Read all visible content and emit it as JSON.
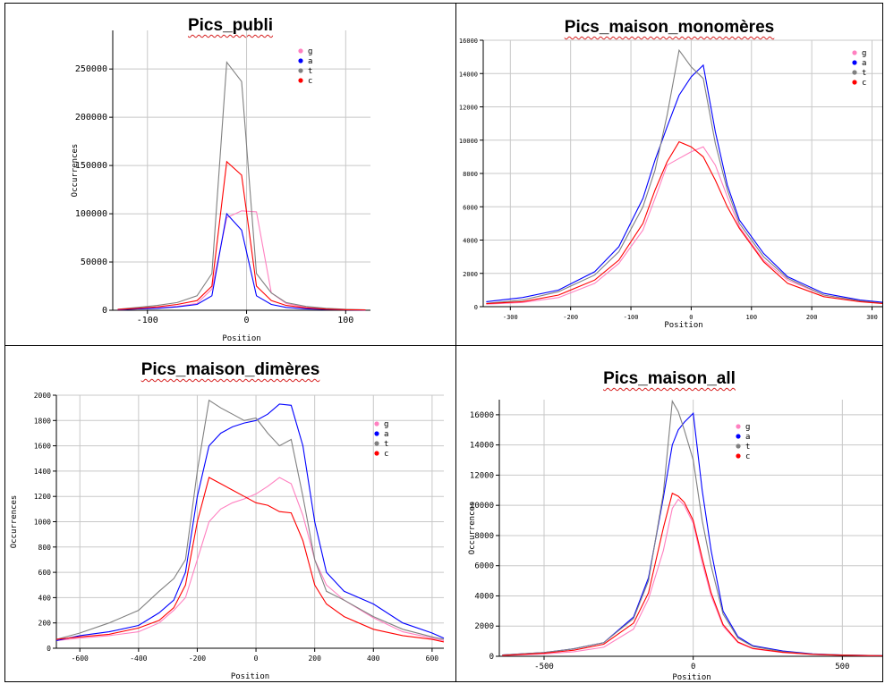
{
  "charts": [
    {
      "title": "Pics_publi",
      "chart_data": {
        "type": "line",
        "xlabel": "Position",
        "ylabel": "Occurrences",
        "xlim": [
          -135,
          125
        ],
        "ylim": [
          0,
          290000
        ],
        "xticks": [
          -100,
          0,
          100
        ],
        "yticks": [
          0,
          50000,
          100000,
          150000,
          200000,
          250000
        ],
        "grid": true,
        "legend_position": "top-right",
        "series": [
          {
            "name": "g",
            "color": "#ff80c0",
            "x": [
              -130,
              -110,
              -90,
              -70,
              -50,
              -35,
              -20,
              -5,
              10,
              25,
              40,
              60,
              80,
              100,
              120
            ],
            "y": [
              500,
              1500,
              2500,
              4000,
              7000,
              22000,
              96000,
              103000,
              102000,
              18000,
              7000,
              3000,
              1500,
              800,
              400
            ]
          },
          {
            "name": "a",
            "color": "#0000ff",
            "x": [
              -130,
              -110,
              -90,
              -70,
              -50,
              -35,
              -20,
              -5,
              10,
              25,
              40,
              60,
              80,
              100,
              120
            ],
            "y": [
              500,
              1500,
              2000,
              3500,
              6000,
              15000,
              100000,
              83000,
              15000,
              6000,
              3000,
              1500,
              800,
              400,
              200
            ]
          },
          {
            "name": "t",
            "color": "#808080",
            "x": [
              -130,
              -110,
              -90,
              -70,
              -50,
              -35,
              -20,
              -5,
              10,
              25,
              40,
              60,
              80,
              100,
              120
            ],
            "y": [
              1000,
              3000,
              5000,
              8000,
              15000,
              38000,
              257000,
              237000,
              38000,
              18000,
              8000,
              4000,
              2000,
              1000,
              500
            ]
          },
          {
            "name": "c",
            "color": "#ff0000",
            "x": [
              -130,
              -110,
              -90,
              -70,
              -50,
              -35,
              -20,
              -5,
              10,
              25,
              40,
              60,
              80,
              100,
              120
            ],
            "y": [
              800,
              2000,
              3500,
              6000,
              10000,
              25000,
              154000,
              140000,
              25000,
              10000,
              5000,
              2500,
              1200,
              600,
              300
            ]
          }
        ]
      }
    },
    {
      "title": "Pics_maison_monomères",
      "chart_data": {
        "type": "line",
        "xlabel": "Position",
        "ylabel": "",
        "xlim": [
          -345,
          320
        ],
        "ylim": [
          0,
          16000
        ],
        "xticks": [
          -300,
          -200,
          -100,
          0,
          100,
          200,
          300
        ],
        "yticks": [
          0,
          2000,
          4000,
          6000,
          8000,
          10000,
          12000,
          14000,
          16000
        ],
        "grid": true,
        "legend_position": "top-right",
        "series": [
          {
            "name": "g",
            "color": "#ff80c0",
            "x": [
              -340,
              -280,
              -220,
              -160,
              -120,
              -80,
              -60,
              -40,
              -20,
              0,
              20,
              40,
              60,
              80,
              120,
              160,
              220,
              280,
              320
            ],
            "y": [
              150,
              250,
              550,
              1400,
              2600,
              4600,
              6500,
              8500,
              8900,
              9300,
              9600,
              8500,
              6600,
              4800,
              2800,
              1600,
              700,
              350,
              200
            ]
          },
          {
            "name": "a",
            "color": "#0000ff",
            "x": [
              -340,
              -280,
              -220,
              -160,
              -120,
              -80,
              -60,
              -40,
              -20,
              0,
              20,
              40,
              60,
              80,
              120,
              160,
              220,
              280,
              320
            ],
            "y": [
              300,
              550,
              1000,
              2100,
              3600,
              6500,
              8800,
              10800,
              12700,
              13800,
              14500,
              10500,
              7300,
              5200,
              3200,
              1800,
              800,
              400,
              250
            ]
          },
          {
            "name": "t",
            "color": "#808080",
            "x": [
              -340,
              -280,
              -220,
              -160,
              -120,
              -80,
              -60,
              -40,
              -20,
              0,
              20,
              40,
              60,
              80,
              120,
              160,
              220,
              280,
              320
            ],
            "y": [
              200,
              400,
              900,
              1900,
              3300,
              6000,
              8200,
              11500,
              15400,
              14400,
              13700,
              9800,
              7000,
              5000,
              3000,
              1700,
              700,
              350,
              200
            ]
          },
          {
            "name": "c",
            "color": "#ff0000",
            "x": [
              -340,
              -280,
              -220,
              -160,
              -120,
              -80,
              -60,
              -40,
              -20,
              0,
              20,
              40,
              60,
              80,
              120,
              160,
              220,
              280,
              320
            ],
            "y": [
              180,
              300,
              700,
              1600,
              2800,
              5000,
              7000,
              8700,
              9900,
              9600,
              9000,
              7600,
              6000,
              4700,
              2700,
              1400,
              600,
              300,
              180
            ]
          }
        ]
      }
    },
    {
      "title": "Pics_maison_dimères",
      "chart_data": {
        "type": "line",
        "xlabel": "Position",
        "ylabel": "Occurrences",
        "xlim": [
          -680,
          640
        ],
        "ylim": [
          0,
          2000
        ],
        "xticks": [
          -600,
          -400,
          -200,
          0,
          200,
          400,
          600
        ],
        "yticks": [
          0,
          200,
          400,
          600,
          800,
          1000,
          1200,
          1400,
          1600,
          1800,
          2000
        ],
        "grid": true,
        "legend_position": "top-right",
        "series": [
          {
            "name": "g",
            "color": "#ff80c0",
            "x": [
              -680,
              -600,
              -500,
              -400,
              -330,
              -280,
              -240,
              -200,
              -160,
              -120,
              -80,
              -40,
              0,
              40,
              80,
              120,
              160,
              200,
              240,
              300,
              400,
              500,
              600,
              640
            ],
            "y": [
              60,
              80,
              100,
              130,
              200,
              300,
              400,
              700,
              1000,
              1100,
              1150,
              1180,
              1220,
              1280,
              1350,
              1300,
              1050,
              700,
              500,
              380,
              240,
              130,
              80,
              60
            ]
          },
          {
            "name": "a",
            "color": "#0000ff",
            "x": [
              -680,
              -600,
              -500,
              -400,
              -330,
              -280,
              -240,
              -200,
              -160,
              -120,
              -80,
              -40,
              0,
              40,
              80,
              120,
              160,
              200,
              240,
              300,
              400,
              500,
              600,
              640
            ],
            "y": [
              60,
              100,
              130,
              180,
              280,
              380,
              600,
              1200,
              1600,
              1700,
              1750,
              1780,
              1800,
              1850,
              1930,
              1920,
              1600,
              1000,
              600,
              450,
              350,
              200,
              120,
              80
            ]
          },
          {
            "name": "t",
            "color": "#808080",
            "x": [
              -680,
              -600,
              -500,
              -400,
              -330,
              -280,
              -240,
              -200,
              -160,
              -120,
              -80,
              -40,
              0,
              40,
              80,
              120,
              160,
              200,
              240,
              300,
              400,
              500,
              600,
              640
            ],
            "y": [
              70,
              120,
              200,
              300,
              450,
              550,
              700,
              1400,
              1960,
              1900,
              1850,
              1800,
              1820,
              1700,
              1600,
              1650,
              1200,
              700,
              450,
              380,
              250,
              150,
              90,
              70
            ]
          },
          {
            "name": "c",
            "color": "#ff0000",
            "x": [
              -680,
              -600,
              -500,
              -400,
              -330,
              -280,
              -240,
              -200,
              -160,
              -120,
              -80,
              -40,
              0,
              40,
              80,
              120,
              160,
              200,
              240,
              300,
              400,
              500,
              600,
              640
            ],
            "y": [
              70,
              90,
              110,
              160,
              220,
              320,
              500,
              1000,
              1350,
              1300,
              1250,
              1200,
              1150,
              1130,
              1080,
              1070,
              850,
              500,
              350,
              250,
              150,
              100,
              70,
              50
            ]
          }
        ]
      }
    },
    {
      "title": "Pics_maison_all",
      "chart_data": {
        "type": "line",
        "xlabel": "Position",
        "ylabel": "Occurrences",
        "xlim": [
          -650,
          640
        ],
        "ylim": [
          0,
          17000
        ],
        "xticks": [
          -500,
          0,
          500
        ],
        "yticks": [
          0,
          2000,
          4000,
          6000,
          8000,
          10000,
          12000,
          14000,
          16000
        ],
        "grid": true,
        "legend_position": "top-right",
        "series": [
          {
            "name": "g",
            "color": "#ff80c0",
            "x": [
              -640,
              -500,
              -400,
              -300,
              -200,
              -150,
              -100,
              -70,
              -50,
              -30,
              0,
              30,
              60,
              100,
              150,
              200,
              300,
              400,
              500,
              640
            ],
            "y": [
              50,
              150,
              300,
              600,
              1800,
              3800,
              7000,
              9800,
              10400,
              10000,
              8800,
              6200,
              4000,
              2000,
              900,
              500,
              250,
              120,
              60,
              30
            ]
          },
          {
            "name": "a",
            "color": "#0000ff",
            "x": [
              -640,
              -500,
              -400,
              -300,
              -200,
              -150,
              -100,
              -70,
              -50,
              -30,
              0,
              30,
              60,
              100,
              150,
              200,
              300,
              400,
              500,
              640
            ],
            "y": [
              80,
              250,
              500,
              900,
              2600,
              5200,
              10500,
              14000,
              15000,
              15500,
              16100,
              11000,
              7000,
              3000,
              1300,
              700,
              350,
              160,
              80,
              40
            ]
          },
          {
            "name": "t",
            "color": "#808080",
            "x": [
              -640,
              -500,
              -400,
              -300,
              -200,
              -150,
              -100,
              -70,
              -50,
              -30,
              0,
              30,
              60,
              100,
              150,
              200,
              300,
              400,
              500,
              640
            ],
            "y": [
              80,
              250,
              500,
              900,
              2500,
              5000,
              10800,
              16900,
              16200,
              15000,
              13000,
              9000,
              6000,
              2800,
              1200,
              650,
              300,
              150,
              80,
              40
            ]
          },
          {
            "name": "c",
            "color": "#ff0000",
            "x": [
              -640,
              -500,
              -400,
              -300,
              -200,
              -150,
              -100,
              -70,
              -50,
              -30,
              0,
              30,
              60,
              100,
              150,
              200,
              300,
              400,
              500,
              640
            ],
            "y": [
              60,
              200,
              400,
              800,
              2200,
              4200,
              8500,
              10800,
              10600,
              10200,
              9000,
              6500,
              4200,
              2100,
              950,
              520,
              260,
              130,
              70,
              35
            ]
          }
        ]
      }
    }
  ]
}
